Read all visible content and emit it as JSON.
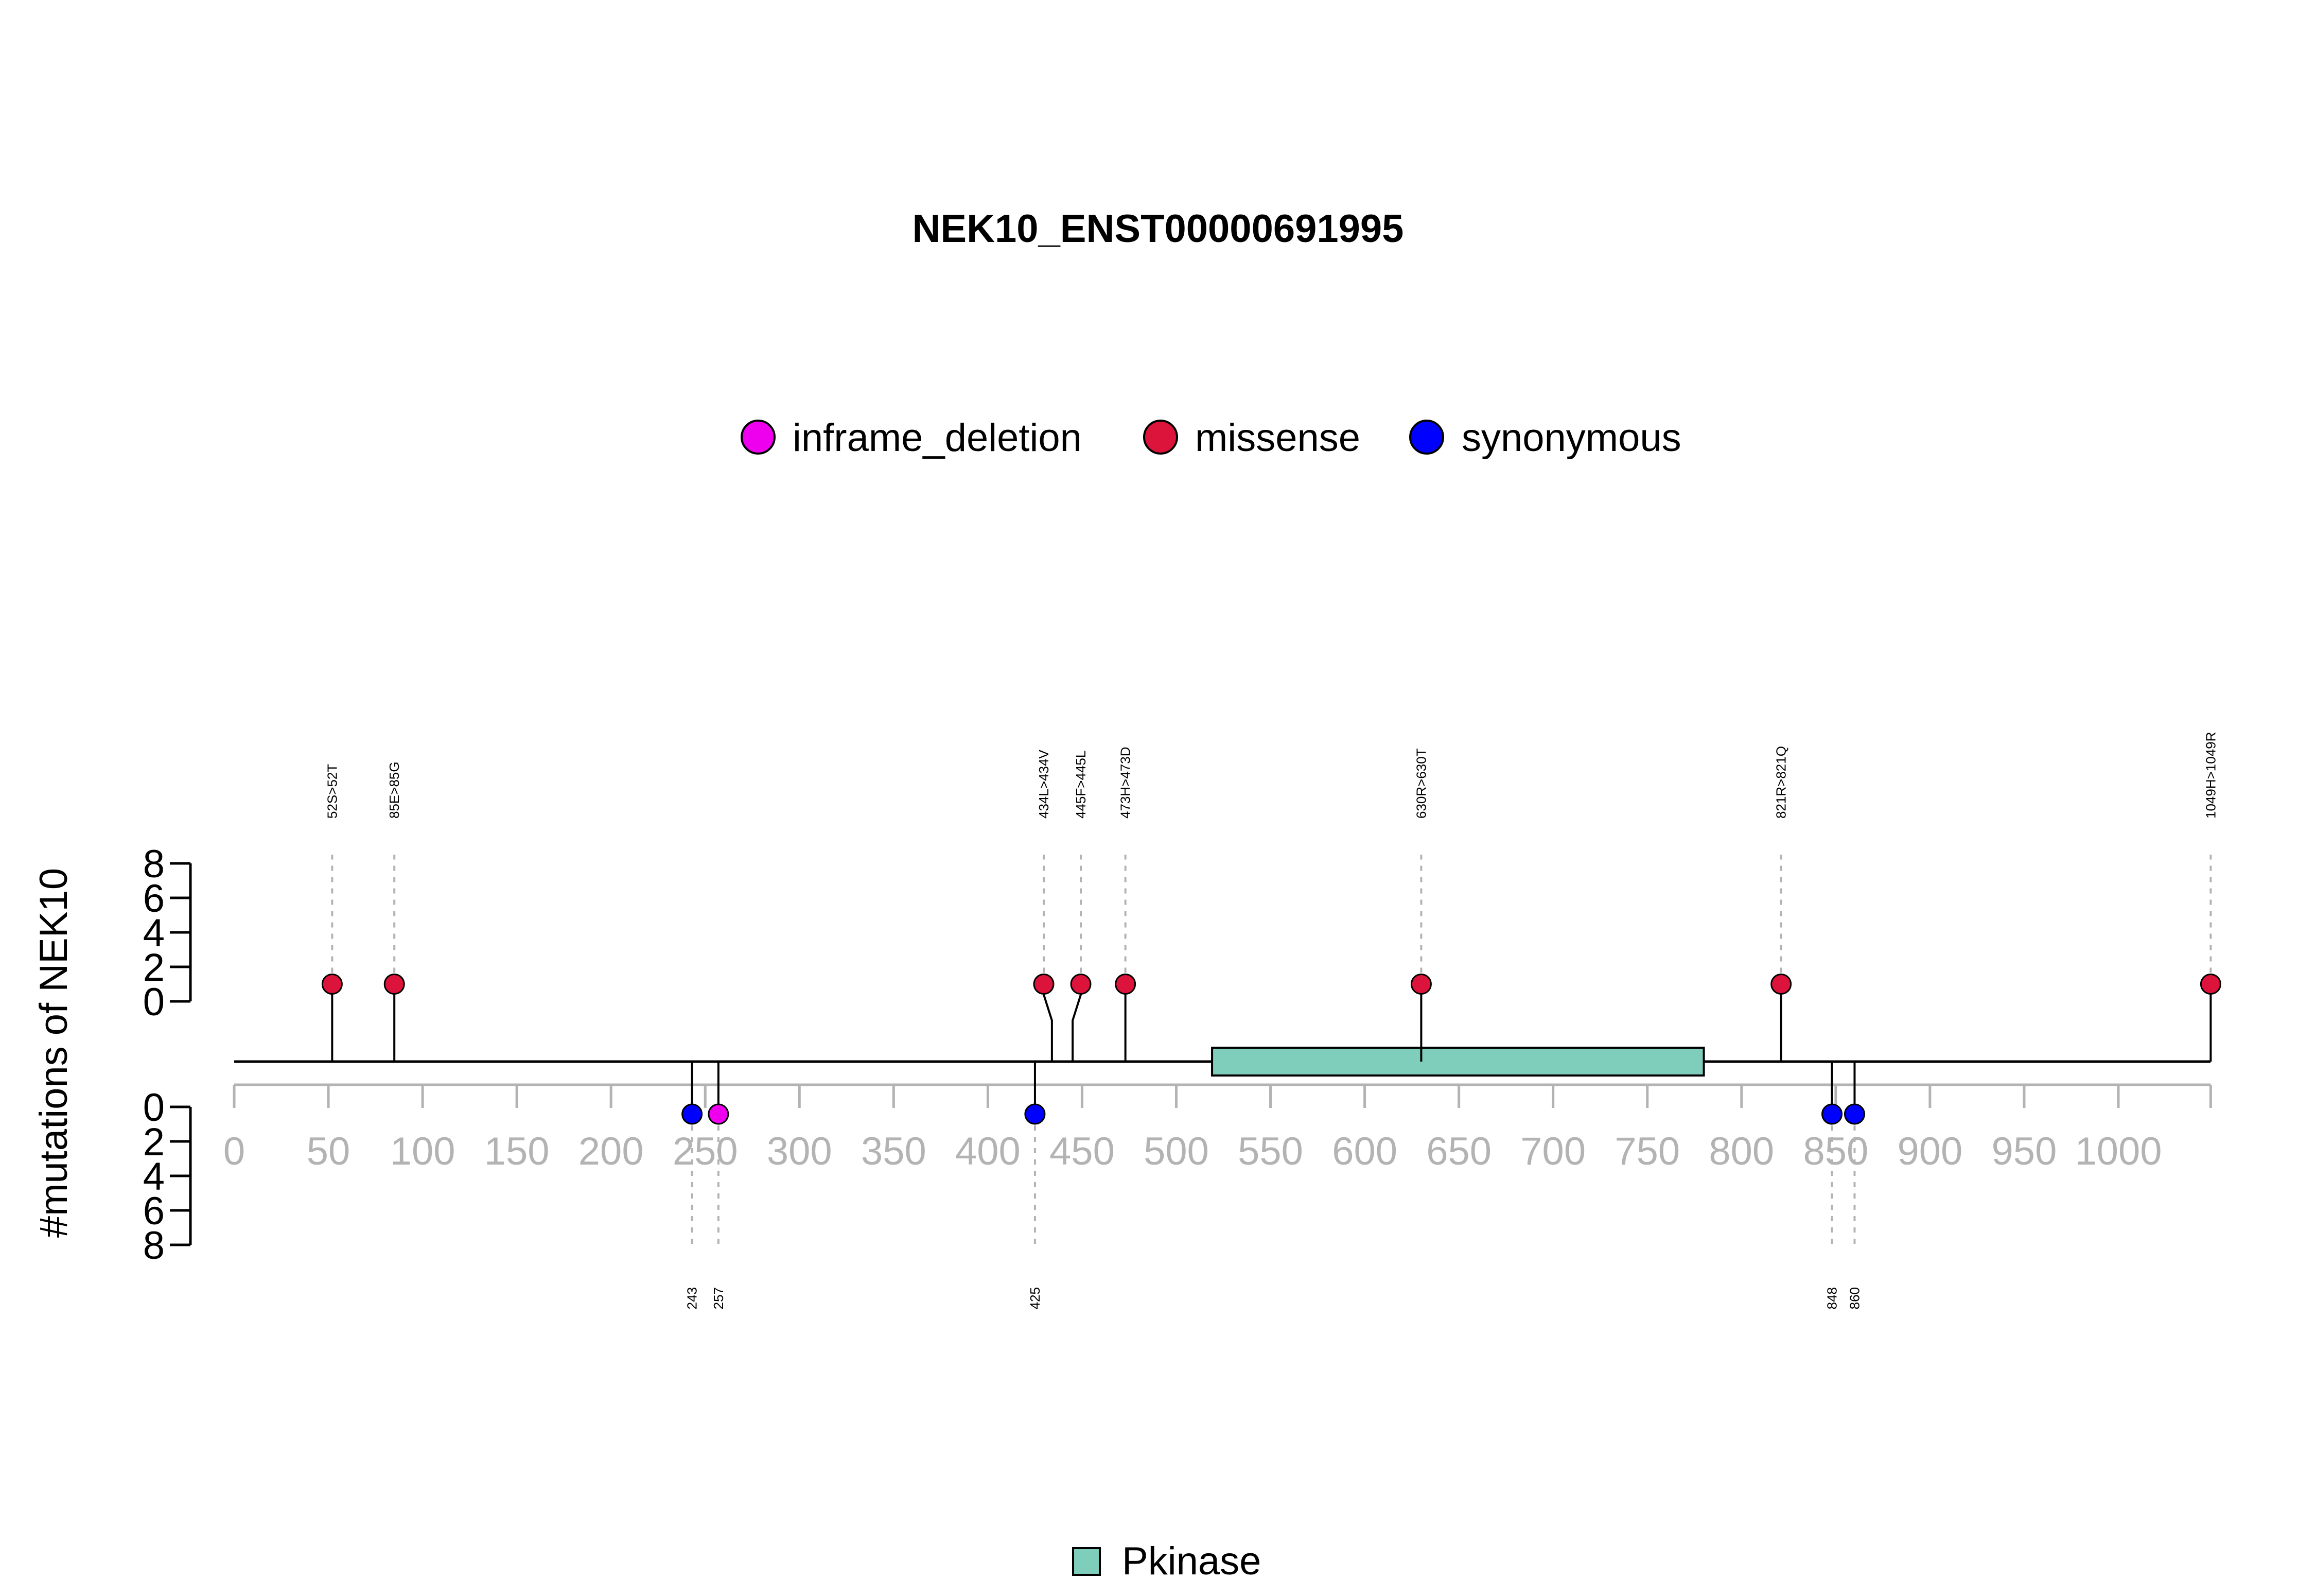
{
  "chart_data": {
    "type": "lollipop",
    "title": "NEK10_ENST00000691995",
    "ylabel": "#mutations of NEK10",
    "xlim": [
      0,
      1049
    ],
    "x_ticks": [
      "0",
      "50",
      "100",
      "150",
      "200",
      "250",
      "300",
      "350",
      "400",
      "450",
      "500",
      "550",
      "600",
      "650",
      "700",
      "750",
      "800",
      "850",
      "900",
      "950",
      "1000"
    ],
    "y_ticks": [
      "0",
      "2",
      "4",
      "6",
      "8"
    ],
    "legend": [
      {
        "name": "inframe_deletion",
        "color": "#ee00ee"
      },
      {
        "name": "missense",
        "color": "#dc143c"
      },
      {
        "name": "synonymous",
        "color": "#0000ff"
      }
    ],
    "domains": [
      {
        "name": "Pkinase",
        "start": 519,
        "end": 780,
        "color": "#7fcdbb"
      }
    ],
    "mutations_top": [
      {
        "pos": 52,
        "label": "52S>52T",
        "type": "missense",
        "count": 1
      },
      {
        "pos": 85,
        "label": "85E>85G",
        "type": "missense",
        "count": 1
      },
      {
        "pos": 434,
        "label": "434L>434V",
        "type": "missense",
        "count": 1
      },
      {
        "pos": 445,
        "label": "445F>445L",
        "type": "missense",
        "count": 1
      },
      {
        "pos": 473,
        "label": "473H>473D",
        "type": "missense",
        "count": 1
      },
      {
        "pos": 630,
        "label": "630R>630T",
        "type": "missense",
        "count": 1
      },
      {
        "pos": 821,
        "label": "821R>821Q",
        "type": "missense",
        "count": 1
      },
      {
        "pos": 1049,
        "label": "1049H>1049R",
        "type": "missense",
        "count": 1
      }
    ],
    "mutations_bottom": [
      {
        "pos": 243,
        "label": "243",
        "type": "synonymous",
        "count": 1
      },
      {
        "pos": 257,
        "label": "257",
        "type": "inframe_deletion",
        "count": 1
      },
      {
        "pos": 425,
        "label": "425",
        "type": "synonymous",
        "count": 1
      },
      {
        "pos": 848,
        "label": "848",
        "type": "synonymous",
        "count": 1
      },
      {
        "pos": 860,
        "label": "860",
        "type": "synonymous",
        "count": 1
      }
    ]
  }
}
